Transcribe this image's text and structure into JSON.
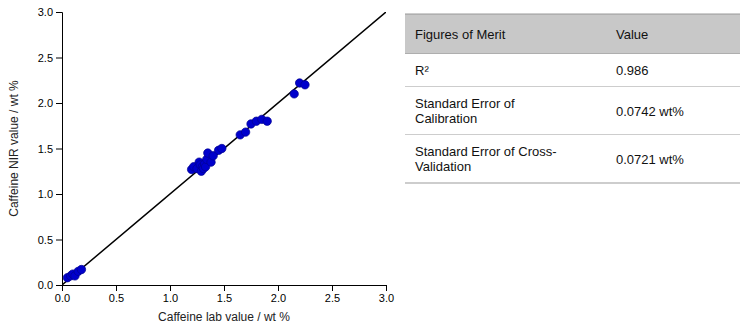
{
  "chart_data": [
    {
      "type": "scatter",
      "xlabel": "Caffeine lab value / wt %",
      "ylabel": "Caffeine NIR value / wt %",
      "xlim": [
        0.0,
        3.0
      ],
      "ylim": [
        0.0,
        3.0
      ],
      "xticks": [
        {
          "value": 0.0,
          "label": "0.0"
        },
        0.5,
        {
          "value": 1.0,
          "label": "1.0"
        },
        1.5,
        {
          "value": 2.0,
          "label": "2.0"
        },
        2.5,
        {
          "value": 3.0,
          "label": "3.0"
        }
      ],
      "yticks": [
        {
          "value": 0.0,
          "label": "0.0"
        },
        0.5,
        {
          "value": 1.0,
          "label": "1.0"
        },
        1.5,
        {
          "value": 2.0,
          "label": "2.0"
        },
        2.5,
        {
          "value": 3.0,
          "label": "3.0"
        }
      ],
      "grid": false,
      "series": [
        {
          "type": "scatter",
          "color": "#0000cc",
          "marker": "circle",
          "x": [
            0.05,
            0.08,
            0.1,
            0.12,
            0.15,
            0.18,
            1.2,
            1.22,
            1.25,
            1.27,
            1.28,
            1.29,
            1.3,
            1.31,
            1.32,
            1.33,
            1.34,
            1.35,
            1.38,
            1.4,
            1.45,
            1.48,
            1.65,
            1.7,
            1.75,
            1.8,
            1.85,
            1.9,
            2.15,
            2.2,
            2.25
          ],
          "values": [
            0.08,
            0.1,
            0.12,
            0.1,
            0.15,
            0.17,
            1.27,
            1.3,
            1.28,
            1.35,
            1.32,
            1.25,
            1.3,
            1.28,
            1.33,
            1.3,
            1.38,
            1.45,
            1.35,
            1.42,
            1.48,
            1.5,
            1.65,
            1.68,
            1.77,
            1.8,
            1.82,
            1.8,
            2.1,
            2.22,
            2.2
          ]
        },
        {
          "type": "line",
          "color": "black",
          "line_style": "solid",
          "x": [
            0.0,
            3.0
          ],
          "values": [
            0.0,
            3.0
          ]
        }
      ]
    },
    {
      "type": "table",
      "columns": [
        "Figures of Merit",
        "Value"
      ],
      "rows": [
        [
          "R²",
          "0.986"
        ],
        [
          "Standard Error of\nCalibration",
          "0.0742 wt%"
        ],
        [
          "Standard Error of Cross-\nValidation",
          "0.0721 wt%"
        ]
      ]
    }
  ]
}
